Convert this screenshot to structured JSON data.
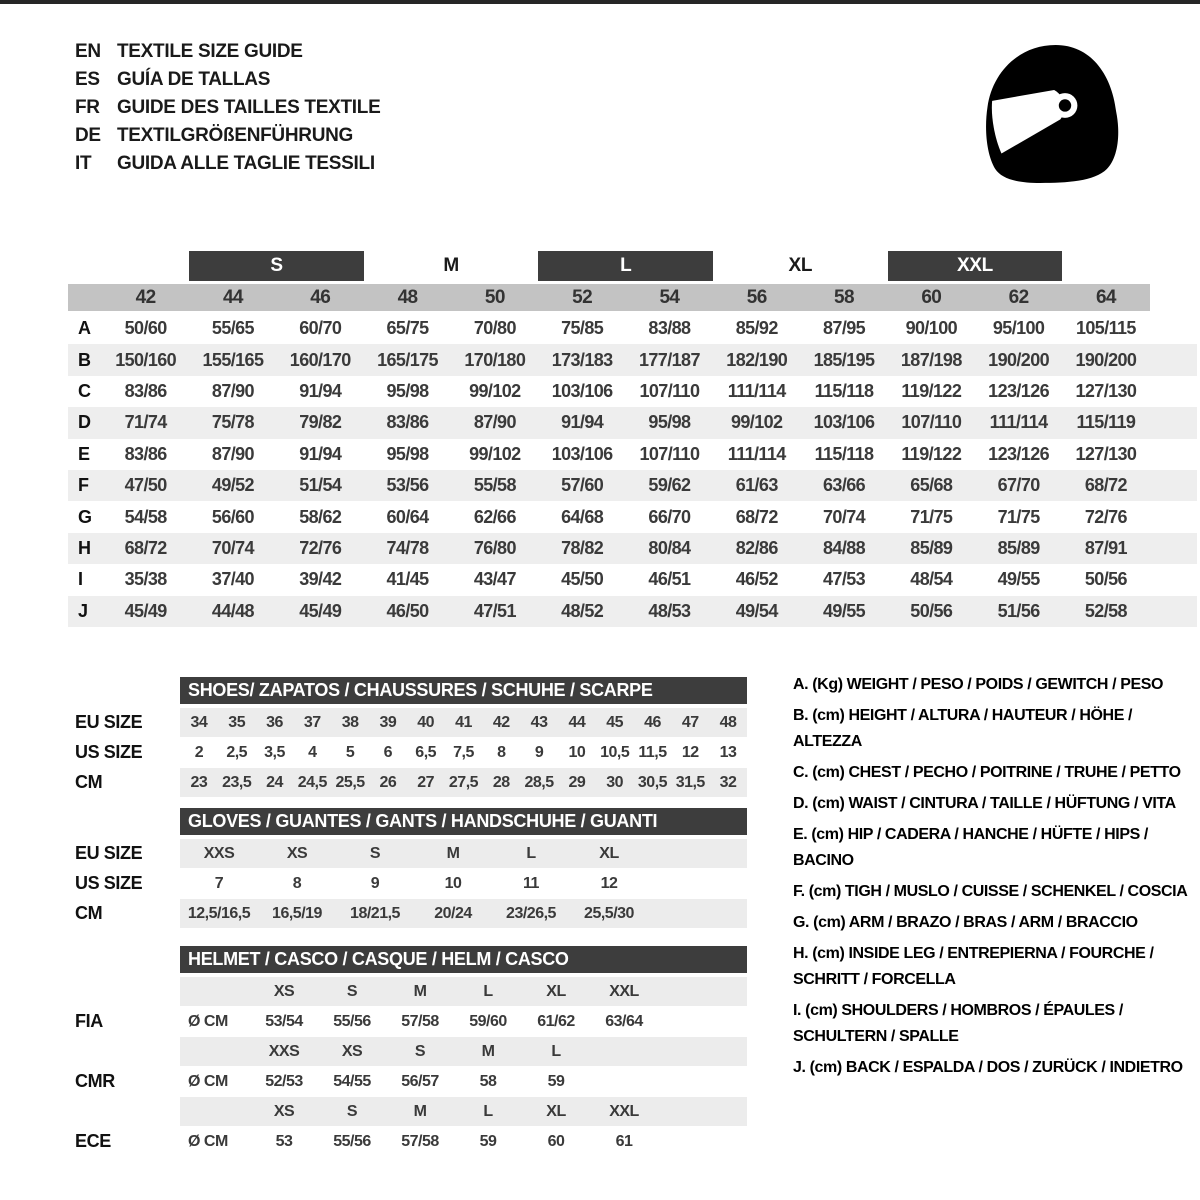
{
  "languages": [
    {
      "code": "EN",
      "label": "TEXTILE SIZE GUIDE"
    },
    {
      "code": "ES",
      "label": "GUÍA DE TALLAS"
    },
    {
      "code": "FR",
      "label": "GUIDE DES TAILLES TEXTILE"
    },
    {
      "code": "DE",
      "label": "TEXTILGRÖßENFÜHRUNG"
    },
    {
      "code": "IT",
      "label": "GUIDA ALLE TAGLIE TESSILI"
    }
  ],
  "icons": {
    "helmet": "racing-helmet-icon"
  },
  "colors": {
    "dark_bar": "#3d3d3d",
    "number_band": "#c3c3c3",
    "row_stripe": "#eeeeee",
    "value_text": "#3a3a3a"
  },
  "main_table": {
    "size_groups": [
      {
        "label": "S",
        "boxed": true
      },
      {
        "label": "M",
        "boxed": false
      },
      {
        "label": "L",
        "boxed": true
      },
      {
        "label": "XL",
        "boxed": false
      },
      {
        "label": "XXL",
        "boxed": true
      }
    ],
    "columns": [
      "42",
      "44",
      "46",
      "48",
      "50",
      "52",
      "54",
      "56",
      "58",
      "60",
      "62",
      "64"
    ],
    "rows": [
      {
        "key": "A",
        "values": [
          "50/60",
          "55/65",
          "60/70",
          "65/75",
          "70/80",
          "75/85",
          "83/88",
          "85/92",
          "87/95",
          "90/100",
          "95/100",
          "105/115"
        ]
      },
      {
        "key": "B",
        "values": [
          "150/160",
          "155/165",
          "160/170",
          "165/175",
          "170/180",
          "173/183",
          "177/187",
          "182/190",
          "185/195",
          "187/198",
          "190/200",
          "190/200"
        ]
      },
      {
        "key": "C",
        "values": [
          "83/86",
          "87/90",
          "91/94",
          "95/98",
          "99/102",
          "103/106",
          "107/110",
          "111/114",
          "115/118",
          "119/122",
          "123/126",
          "127/130"
        ]
      },
      {
        "key": "D",
        "values": [
          "71/74",
          "75/78",
          "79/82",
          "83/86",
          "87/90",
          "91/94",
          "95/98",
          "99/102",
          "103/106",
          "107/110",
          "111/114",
          "115/119"
        ]
      },
      {
        "key": "E",
        "values": [
          "83/86",
          "87/90",
          "91/94",
          "95/98",
          "99/102",
          "103/106",
          "107/110",
          "111/114",
          "115/118",
          "119/122",
          "123/126",
          "127/130"
        ]
      },
      {
        "key": "F",
        "values": [
          "47/50",
          "49/52",
          "51/54",
          "53/56",
          "55/58",
          "57/60",
          "59/62",
          "61/63",
          "63/66",
          "65/68",
          "67/70",
          "68/72"
        ]
      },
      {
        "key": "G",
        "values": [
          "54/58",
          "56/60",
          "58/62",
          "60/64",
          "62/66",
          "64/68",
          "66/70",
          "68/72",
          "70/74",
          "71/75",
          "71/75",
          "72/76"
        ]
      },
      {
        "key": "H",
        "values": [
          "68/72",
          "70/74",
          "72/76",
          "74/78",
          "76/80",
          "78/82",
          "80/84",
          "82/86",
          "84/88",
          "85/89",
          "85/89",
          "87/91"
        ]
      },
      {
        "key": "I",
        "values": [
          "35/38",
          "37/40",
          "39/42",
          "41/45",
          "43/47",
          "45/50",
          "46/51",
          "46/52",
          "47/53",
          "48/54",
          "49/55",
          "50/56"
        ]
      },
      {
        "key": "J",
        "values": [
          "45/49",
          "44/48",
          "45/49",
          "46/50",
          "47/51",
          "48/52",
          "48/53",
          "49/54",
          "49/55",
          "50/56",
          "51/56",
          "52/58"
        ]
      }
    ]
  },
  "shoes": {
    "title": "SHOES/ ZAPATOS / CHAUSSURES / SCHUHE / SCARPE",
    "rows": [
      {
        "label": "EU SIZE",
        "gray": true,
        "values": [
          "34",
          "35",
          "36",
          "37",
          "38",
          "39",
          "40",
          "41",
          "42",
          "43",
          "44",
          "45",
          "46",
          "47",
          "48"
        ]
      },
      {
        "label": "US SIZE",
        "gray": false,
        "values": [
          "2",
          "2,5",
          "3,5",
          "4",
          "5",
          "6",
          "6,5",
          "7,5",
          "8",
          "9",
          "10",
          "10,5",
          "11,5",
          "12",
          "13"
        ]
      },
      {
        "label": "CM",
        "gray": true,
        "values": [
          "23",
          "23,5",
          "24",
          "24,5",
          "25,5",
          "26",
          "27",
          "27,5",
          "28",
          "28,5",
          "29",
          "30",
          "30,5",
          "31,5",
          "32"
        ]
      }
    ]
  },
  "gloves": {
    "title": "GLOVES / GUANTES / GANTS / HANDSCHUHE / GUANTI",
    "rows": [
      {
        "label": "EU SIZE",
        "gray": true,
        "values": [
          "XXS",
          "XS",
          "S",
          "M",
          "L",
          "XL"
        ]
      },
      {
        "label": "US SIZE",
        "gray": false,
        "values": [
          "7",
          "8",
          "9",
          "10",
          "11",
          "12"
        ]
      },
      {
        "label": "CM",
        "gray": true,
        "values": [
          "12,5/16,5",
          "16,5/19",
          "18/21,5",
          "20/24",
          "23/26,5",
          "25,5/30"
        ]
      }
    ]
  },
  "helmet": {
    "title": "HELMET / CASCO / CASQUE / HELM / CASCO",
    "groups": [
      {
        "label": "FIA",
        "unit": "Ø CM",
        "sizes": [
          "XS",
          "S",
          "M",
          "L",
          "XL",
          "XXL"
        ],
        "values": [
          "53/54",
          "55/56",
          "57/58",
          "59/60",
          "61/62",
          "63/64"
        ]
      },
      {
        "label": "CMR",
        "unit": "Ø CM",
        "sizes": [
          "XXS",
          "XS",
          "S",
          "M",
          "L"
        ],
        "values": [
          "52/53",
          "54/55",
          "56/57",
          "58",
          "59"
        ]
      },
      {
        "label": "ECE",
        "unit": "Ø CM",
        "sizes": [
          "XS",
          "S",
          "M",
          "L",
          "XL",
          "XXL"
        ],
        "values": [
          "53",
          "55/56",
          "57/58",
          "59",
          "60",
          "61"
        ]
      }
    ]
  },
  "legend": [
    "A. (Kg) WEIGHT / PESO / POIDS / GEWITCH / PESO",
    "B. (cm) HEIGHT / ALTURA / HAUTEUR / HÖHE / ALTEZZA",
    "C. (cm) CHEST / PECHO / POITRINE / TRUHE / PETTO",
    "D. (cm) WAIST / CINTURA / TAILLE / HÜFTUNG / VITA",
    "E. (cm) HIP / CADERA / HANCHE / HÜFTE / HIPS / BACINO",
    "F. (cm) TIGH / MUSLO / CUISSE / SCHENKEL / COSCIA",
    "G. (cm) ARM / BRAZO / BRAS / ARM / BRACCIO",
    "H. (cm) INSIDE LEG / ENTREPIERNA / FOURCHE / SCHRITT / FORCELLA",
    "I. (cm) SHOULDERS / HOMBROS / ÉPAULES / SCHULTERN / SPALLE",
    "J. (cm) BACK / ESPALDA / DOS / ZURÜCK / INDIETRO"
  ]
}
